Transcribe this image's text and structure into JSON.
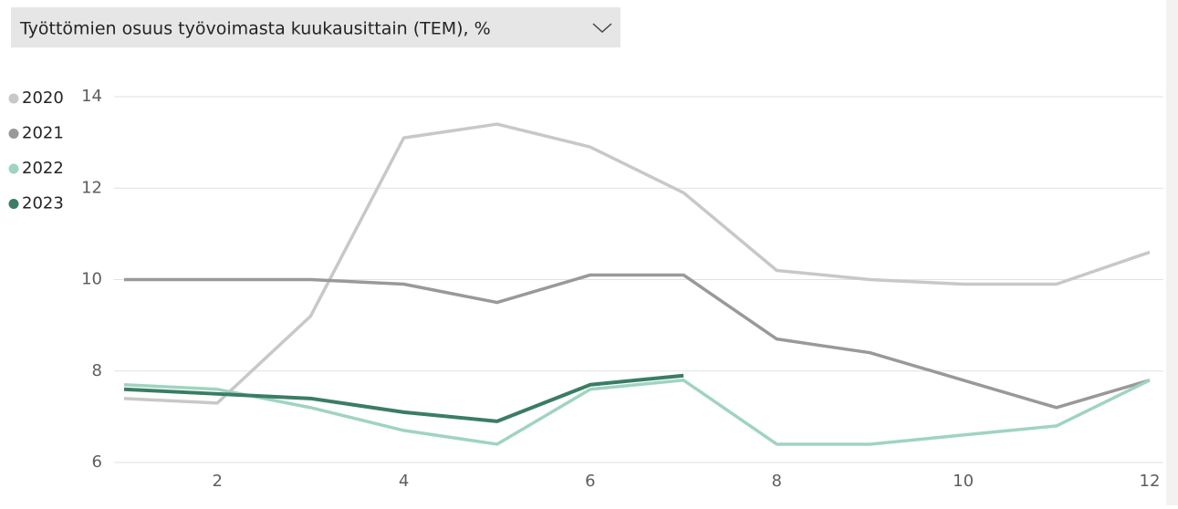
{
  "chart_data": {
    "type": "line",
    "title": "Työttömien osuus työvoimasta kuukausittain (TEM), %",
    "x": [
      1,
      2,
      3,
      4,
      5,
      6,
      7,
      8,
      9,
      10,
      11,
      12
    ],
    "series": [
      {
        "name": "2020",
        "color": "#c8c8c8",
        "values": [
          7.4,
          7.3,
          9.2,
          13.1,
          13.4,
          12.9,
          11.9,
          10.2,
          10.0,
          9.9,
          9.9,
          10.6
        ]
      },
      {
        "name": "2021",
        "color": "#999999",
        "values": [
          10.0,
          10.0,
          10.0,
          9.9,
          9.5,
          10.1,
          10.1,
          8.7,
          8.4,
          7.8,
          7.2,
          7.8
        ]
      },
      {
        "name": "2022",
        "color": "#9fd4c0",
        "values": [
          7.7,
          7.6,
          7.2,
          6.7,
          6.4,
          7.6,
          7.8,
          6.4,
          6.4,
          6.6,
          6.8,
          7.8
        ]
      },
      {
        "name": "2023",
        "color": "#3a7d64",
        "values": [
          7.6,
          7.5,
          7.4,
          7.1,
          6.9,
          7.7,
          7.9,
          null,
          null,
          null,
          null,
          null
        ]
      }
    ],
    "xlim": [
      1,
      12
    ],
    "xticks": [
      2,
      4,
      6,
      8,
      10,
      12
    ],
    "ylim": [
      6,
      14
    ],
    "yticks": [
      6,
      8,
      10,
      12,
      14
    ],
    "grid": true,
    "legend": "left"
  }
}
